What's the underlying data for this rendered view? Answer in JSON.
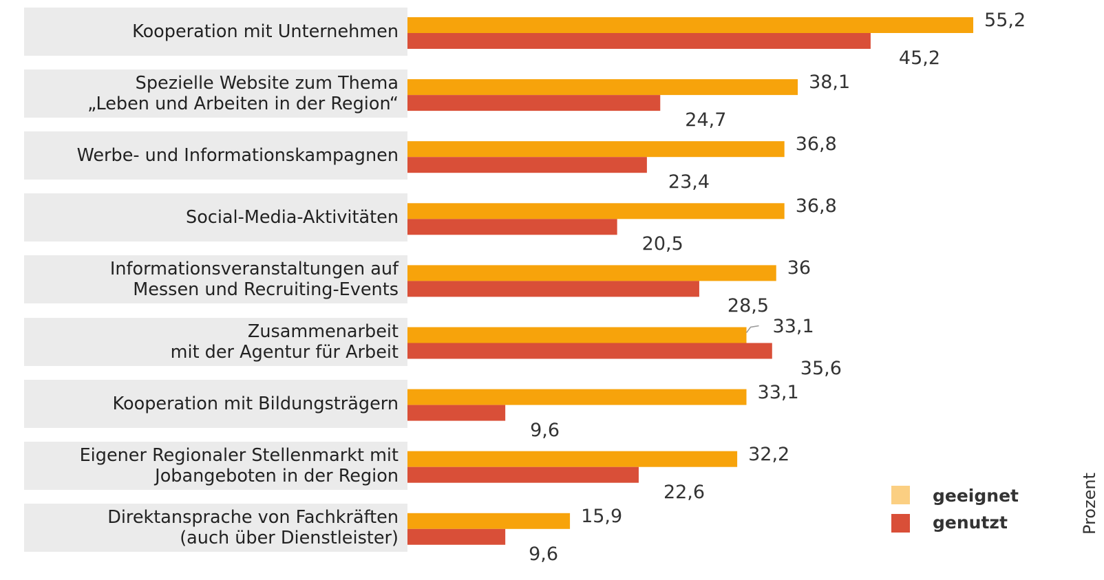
{
  "chart_data": {
    "type": "bar",
    "orientation": "horizontal",
    "categories": [
      "Kooperation mit Unternehmen",
      "Spezielle Website zum Thema\n„Leben und Arbeiten in der Region“",
      "Werbe- und Informationskampagnen",
      "Social-Media-Aktivitäten",
      "Informationsveranstaltungen auf\nMessen und Recruiting-Events",
      "Zusammenarbeit\nmit der Agentur für Arbeit",
      "Kooperation mit Bildungsträgern",
      "Eigener Regionaler Stellenmarkt mit\nJobangeboten in der Region",
      "Direktansprache von Fachkräften\n(auch über Dienstleister)"
    ],
    "series": [
      {
        "name": "geeignet",
        "color": "#f7a30b",
        "values": [
          55.2,
          38.1,
          36.8,
          36.8,
          36,
          33.1,
          33.1,
          32.2,
          15.9
        ],
        "labels": [
          "55,2",
          "38,1",
          "36,8",
          "36,8",
          "36",
          "33,1",
          "33,1",
          "32,2",
          "15,9"
        ]
      },
      {
        "name": "genutzt",
        "color": "#d94f38",
        "values": [
          45.2,
          24.7,
          23.4,
          20.5,
          28.5,
          35.6,
          9.6,
          22.6,
          9.6
        ],
        "labels": [
          "45,2",
          "24,7",
          "23,4",
          "20,5",
          "28,5",
          "35,6",
          "9,6",
          "22,6",
          "9,6"
        ]
      }
    ],
    "legend": {
      "position": "bottom-right",
      "items": [
        {
          "label": "geeignet",
          "color": "#fbcf82"
        },
        {
          "label": "genutzt",
          "color": "#d94f38"
        }
      ]
    },
    "ylabel": "Prozent",
    "xlim": [
      0,
      55.2
    ],
    "grid": false
  }
}
